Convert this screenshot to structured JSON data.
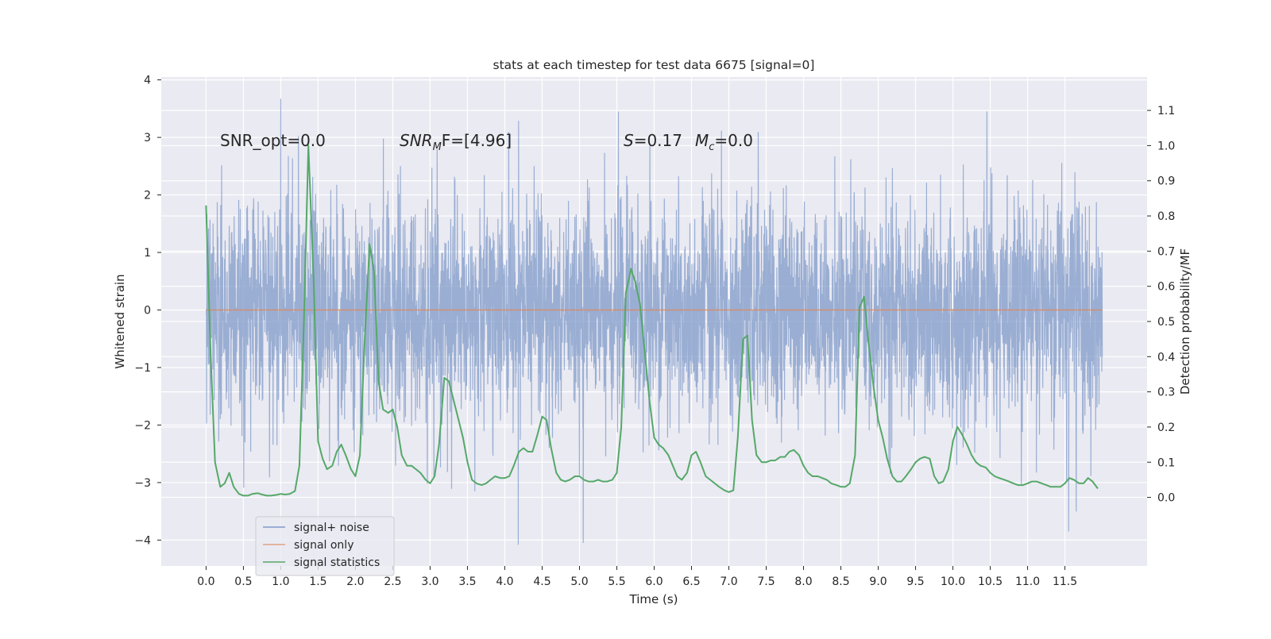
{
  "chart_data": {
    "type": "line",
    "title": "stats at each timestep for test data 6675 [signal=0]",
    "xlabel": "Time (s)",
    "ylabel_left": "Whitened strain",
    "ylabel_right": "Detection probability/MF",
    "xlim": [
      -0.6,
      12.6
    ],
    "ylim_left": [
      -4.45,
      4.05
    ],
    "ylim_right": [
      -0.195,
      1.195
    ],
    "x_ticks": [
      "0.0",
      "0.5",
      "1.0",
      "1.5",
      "2.0",
      "2.5",
      "3.0",
      "3.5",
      "4.0",
      "4.5",
      "5.0",
      "5.5",
      "6.0",
      "6.5",
      "7.0",
      "7.5",
      "8.0",
      "8.5",
      "9.0",
      "9.5",
      "10.0",
      "10.5",
      "11.0",
      "11.5"
    ],
    "y_ticks_left": [
      "4",
      "3",
      "2",
      "1",
      "0",
      "−1",
      "−2",
      "−3",
      "−4"
    ],
    "y_ticks_right": [
      "1.1",
      "1.0",
      "0.9",
      "0.8",
      "0.7",
      "0.6",
      "0.5",
      "0.4",
      "0.3",
      "0.2",
      "0.1",
      "0.0"
    ],
    "grid": true,
    "legend_position": "lower-left",
    "annotations": {
      "snr_opt": "SNR_opt=0.0",
      "snr_mf_prefix": "SNR",
      "snr_mf_sub": "M",
      "snr_mf_suffix": "F=[4.96]",
      "s_var": "S",
      "s_val": "=0.17",
      "mc_var": "M",
      "mc_sub": "c",
      "mc_val": "=0.0"
    },
    "series": [
      {
        "name": "signal+ noise",
        "color": "#7f99c8",
        "axis": "left",
        "description": "whitened strain time series, amplitude roughly ±2 with spikes to ±3.6",
        "x_range": [
          0.0,
          12.0
        ],
        "envelope_typical": 1.6,
        "extremes": {
          "max": 3.67,
          "min": -4.08
        }
      },
      {
        "name": "signal only",
        "color": "#dd8452",
        "axis": "left",
        "x": [
          0.0,
          12.0
        ],
        "y": [
          0.0,
          0.0
        ]
      },
      {
        "name": "signal statistics",
        "color": "#55a868",
        "axis": "right",
        "x": [
          0.0,
          0.06,
          0.12,
          0.19,
          0.25,
          0.31,
          0.37,
          0.44,
          0.5,
          0.56,
          0.62,
          0.69,
          0.75,
          0.81,
          0.87,
          0.94,
          1.0,
          1.06,
          1.12,
          1.19,
          1.25,
          1.31,
          1.37,
          1.44,
          1.5,
          1.56,
          1.62,
          1.69,
          1.75,
          1.81,
          1.87,
          1.94,
          2.0,
          2.06,
          2.12,
          2.19,
          2.25,
          2.31,
          2.37,
          2.44,
          2.5,
          2.56,
          2.62,
          2.69,
          2.75,
          2.81,
          2.87,
          2.94,
          3.0,
          3.06,
          3.12,
          3.19,
          3.25,
          3.31,
          3.37,
          3.44,
          3.5,
          3.56,
          3.62,
          3.69,
          3.75,
          3.81,
          3.87,
          3.94,
          4.0,
          4.06,
          4.12,
          4.19,
          4.25,
          4.31,
          4.37,
          4.44,
          4.5,
          4.56,
          4.62,
          4.69,
          4.75,
          4.81,
          4.87,
          4.94,
          5.0,
          5.06,
          5.12,
          5.19,
          5.25,
          5.31,
          5.37,
          5.44,
          5.5,
          5.56,
          5.62,
          5.69,
          5.75,
          5.81,
          5.87,
          5.94,
          6.0,
          6.06,
          6.12,
          6.19,
          6.25,
          6.31,
          6.37,
          6.44,
          6.5,
          6.56,
          6.62,
          6.69,
          6.75,
          6.81,
          6.87,
          6.94,
          7.0,
          7.06,
          7.12,
          7.19,
          7.25,
          7.31,
          7.37,
          7.44,
          7.5,
          7.56,
          7.62,
          7.69,
          7.75,
          7.81,
          7.87,
          7.94,
          8.0,
          8.06,
          8.12,
          8.19,
          8.25,
          8.31,
          8.37,
          8.44,
          8.5,
          8.56,
          8.62,
          8.69,
          8.75,
          8.81,
          8.87,
          8.94,
          9.0,
          9.06,
          9.12,
          9.19,
          9.25,
          9.31,
          9.37,
          9.44,
          9.5,
          9.56,
          9.62,
          9.69,
          9.75,
          9.81,
          9.87,
          9.94,
          10.0,
          10.06,
          10.12,
          10.19,
          10.25,
          10.31,
          10.37,
          10.44,
          10.5,
          10.56,
          10.62,
          10.69,
          10.75,
          10.81,
          10.87,
          10.94,
          11.0,
          11.06,
          11.12,
          11.19,
          11.25,
          11.31,
          11.37,
          11.44,
          11.5,
          11.56,
          11.62,
          11.69,
          11.75,
          11.81,
          11.87,
          11.94
        ],
        "y": [
          0.83,
          0.41,
          0.1,
          0.03,
          0.04,
          0.07,
          0.03,
          0.01,
          0.005,
          0.005,
          0.01,
          0.012,
          0.008,
          0.005,
          0.005,
          0.007,
          0.01,
          0.008,
          0.01,
          0.018,
          0.09,
          0.5,
          1.0,
          0.62,
          0.16,
          0.11,
          0.08,
          0.09,
          0.13,
          0.15,
          0.12,
          0.08,
          0.06,
          0.12,
          0.43,
          0.72,
          0.64,
          0.33,
          0.25,
          0.24,
          0.25,
          0.2,
          0.12,
          0.09,
          0.09,
          0.08,
          0.07,
          0.05,
          0.04,
          0.06,
          0.15,
          0.34,
          0.33,
          0.28,
          0.23,
          0.17,
          0.1,
          0.05,
          0.04,
          0.035,
          0.04,
          0.05,
          0.06,
          0.055,
          0.055,
          0.06,
          0.09,
          0.13,
          0.14,
          0.13,
          0.13,
          0.18,
          0.23,
          0.22,
          0.14,
          0.07,
          0.05,
          0.045,
          0.05,
          0.06,
          0.06,
          0.05,
          0.045,
          0.045,
          0.05,
          0.045,
          0.045,
          0.05,
          0.07,
          0.2,
          0.58,
          0.65,
          0.61,
          0.55,
          0.42,
          0.27,
          0.17,
          0.15,
          0.14,
          0.12,
          0.09,
          0.06,
          0.05,
          0.07,
          0.12,
          0.13,
          0.1,
          0.06,
          0.05,
          0.04,
          0.03,
          0.02,
          0.015,
          0.02,
          0.17,
          0.45,
          0.46,
          0.22,
          0.12,
          0.1,
          0.1,
          0.105,
          0.105,
          0.115,
          0.115,
          0.13,
          0.135,
          0.12,
          0.09,
          0.07,
          0.06,
          0.06,
          0.055,
          0.05,
          0.04,
          0.035,
          0.03,
          0.03,
          0.04,
          0.12,
          0.54,
          0.57,
          0.44,
          0.31,
          0.22,
          0.17,
          0.11,
          0.06,
          0.045,
          0.045,
          0.06,
          0.08,
          0.1,
          0.11,
          0.115,
          0.11,
          0.06,
          0.04,
          0.045,
          0.08,
          0.16,
          0.2,
          0.18,
          0.15,
          0.12,
          0.1,
          0.09,
          0.085,
          0.07,
          0.06,
          0.055,
          0.05,
          0.045,
          0.04,
          0.035,
          0.035,
          0.04,
          0.045,
          0.045,
          0.04,
          0.035,
          0.03,
          0.03,
          0.03,
          0.04,
          0.055,
          0.05,
          0.04,
          0.04,
          0.055,
          0.045,
          0.025
        ]
      }
    ]
  }
}
